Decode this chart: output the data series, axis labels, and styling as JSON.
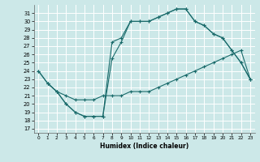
{
  "xlabel": "Humidex (Indice chaleur)",
  "bg_color": "#cce8e8",
  "grid_color": "#ffffff",
  "line_color": "#1a6b6b",
  "xlim": [
    -0.5,
    23.5
  ],
  "ylim": [
    16.5,
    32
  ],
  "xticks": [
    0,
    1,
    2,
    3,
    4,
    5,
    6,
    7,
    8,
    9,
    10,
    11,
    12,
    13,
    14,
    15,
    16,
    17,
    18,
    19,
    20,
    21,
    22,
    23
  ],
  "yticks": [
    17,
    18,
    19,
    20,
    21,
    22,
    23,
    24,
    25,
    26,
    27,
    28,
    29,
    30,
    31
  ],
  "line1_x": [
    0,
    1,
    2,
    3,
    4,
    5,
    6,
    7,
    8,
    9,
    10,
    11,
    12,
    13,
    14,
    15,
    16,
    17,
    18,
    19,
    20,
    21,
    22,
    23
  ],
  "line1_y": [
    24,
    22.5,
    21.5,
    20,
    19,
    18.5,
    18.5,
    18.5,
    27.5,
    28,
    30,
    30,
    30,
    30.5,
    31,
    31.5,
    31.5,
    30,
    29.5,
    28.5,
    28,
    26.5,
    25,
    23
  ],
  "line2_x": [
    0,
    1,
    2,
    3,
    4,
    5,
    6,
    7,
    8,
    9,
    10,
    11,
    12,
    13,
    14,
    15,
    16,
    17,
    18,
    19,
    20,
    21,
    22,
    23
  ],
  "line2_y": [
    24,
    22.5,
    21.5,
    21,
    20.5,
    20.5,
    20.5,
    21,
    21,
    21,
    21.5,
    21.5,
    21.5,
    22,
    22.5,
    23,
    23.5,
    24,
    24.5,
    25,
    25.5,
    26,
    26.5,
    23
  ],
  "line3_x": [
    1,
    2,
    3,
    4,
    5,
    6,
    7,
    8,
    9,
    10,
    11,
    12,
    13,
    14,
    15,
    16,
    17,
    18,
    19,
    20,
    21,
    22,
    23
  ],
  "line3_y": [
    22.5,
    21.5,
    20,
    19,
    18.5,
    18.5,
    18.5,
    25.5,
    27.5,
    30,
    30,
    30,
    30.5,
    31,
    31.5,
    31.5,
    30,
    29.5,
    28.5,
    28,
    26.5,
    25,
    23
  ]
}
